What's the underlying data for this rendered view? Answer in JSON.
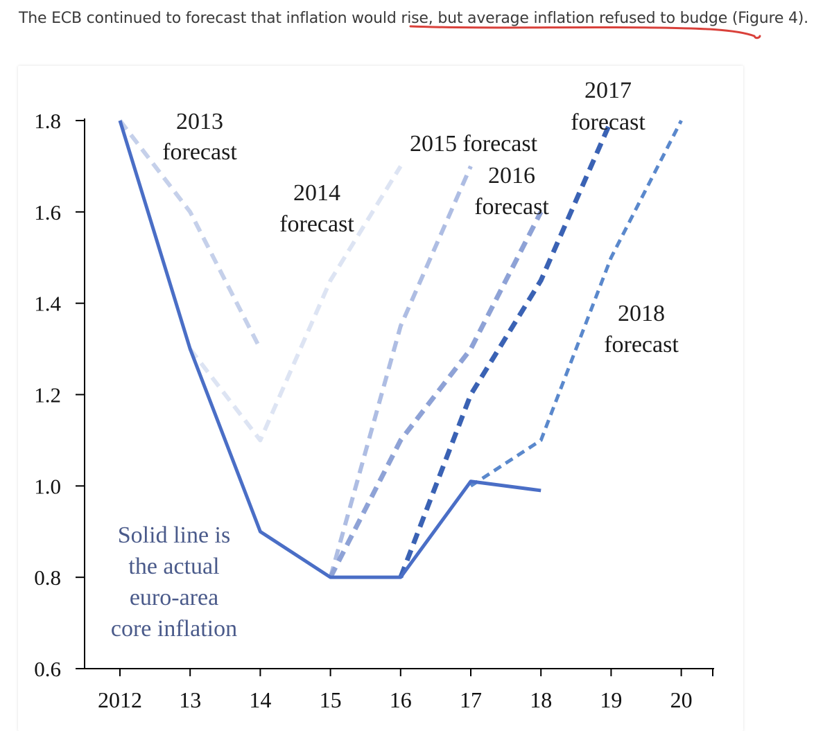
{
  "caption": {
    "text": "The ECB continued to forecast that inflation would rise, but average inflation refused to budge (Figure 4).",
    "underline_color": "#d9403a"
  },
  "chart_data": {
    "type": "line",
    "x_tick_labels": [
      "2012",
      "13",
      "14",
      "15",
      "16",
      "17",
      "18",
      "19",
      "20"
    ],
    "ylim": [
      0.6,
      1.8
    ],
    "y_ticks": [
      "0.6",
      "0.8",
      "1.0",
      "1.2",
      "1.4",
      "1.6",
      "1.8"
    ],
    "grid": false,
    "series": [
      {
        "x": [
          2012,
          2013,
          2014,
          2015,
          2016,
          2017,
          2018
        ],
        "values": [
          1.8,
          1.3,
          0.9,
          0.8,
          0.8,
          1.01,
          0.99
        ],
        "color": "#4a6ec6",
        "style": "solid"
      },
      {
        "x": [
          2012,
          2013,
          2014
        ],
        "values": [
          1.8,
          1.6,
          1.3
        ],
        "color": "#c5d0ea",
        "style": "dashed"
      },
      {
        "x": [
          2013,
          2014,
          2015,
          2016
        ],
        "values": [
          1.3,
          1.1,
          1.45,
          1.7
        ],
        "color": "#dde4f3",
        "style": "dashed"
      },
      {
        "x": [
          2015,
          2016,
          2017
        ],
        "values": [
          0.8,
          1.35,
          1.7
        ],
        "color": "#aebde3",
        "style": "dashed"
      },
      {
        "x": [
          2015,
          2016,
          2017,
          2018
        ],
        "values": [
          0.8,
          1.1,
          1.3,
          1.6
        ],
        "color": "#8ea2d6",
        "style": "dashed"
      },
      {
        "x": [
          2016,
          2017,
          2018,
          2019
        ],
        "values": [
          0.8,
          1.2,
          1.45,
          1.8
        ],
        "color": "#3a62b4",
        "style": "dashed"
      },
      {
        "x": [
          2017,
          2018,
          2019,
          2020
        ],
        "values": [
          1.0,
          1.1,
          1.5,
          1.8
        ],
        "color": "#5a88cc",
        "style": "dashed"
      }
    ],
    "annotations": [
      {
        "text_lines": [
          "2013",
          "forecast"
        ]
      },
      {
        "text_lines": [
          "2014",
          "forecast"
        ]
      },
      {
        "text_lines": [
          "2015  forecast"
        ]
      },
      {
        "text_lines": [
          "2016",
          "forecast"
        ]
      },
      {
        "text_lines": [
          "2017",
          "forecast"
        ]
      },
      {
        "text_lines": [
          "2018",
          "forecast"
        ]
      },
      {
        "text_lines": [
          "Solid line is",
          "the actual",
          "euro-area",
          "core inflation"
        ]
      }
    ]
  }
}
